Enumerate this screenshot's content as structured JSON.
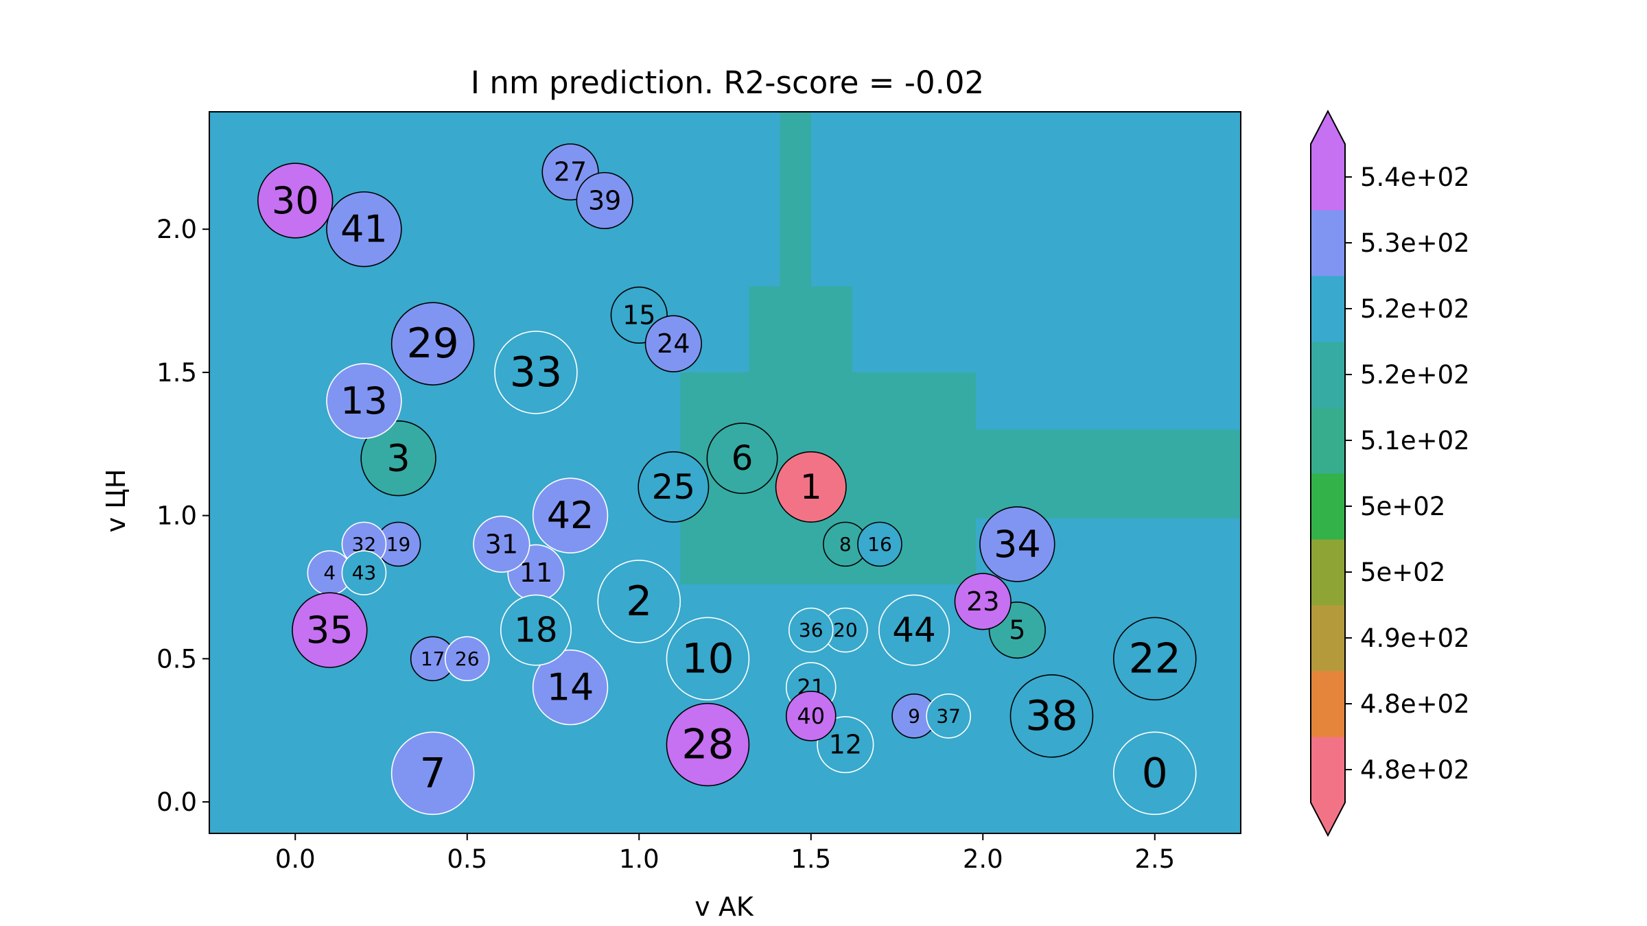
{
  "chart_data": {
    "type": "scatter",
    "title": "I nm prediction. R2-score = -0.02",
    "xlabel": "v AK",
    "ylabel": "v ЦН",
    "xlim": [
      -0.25,
      2.75
    ],
    "ylim": [
      -0.11,
      2.41
    ],
    "xticks": [
      "0.0",
      "0.5",
      "1.0",
      "1.5",
      "2.0",
      "2.5"
    ],
    "yticks": [
      "0.0",
      "0.5",
      "1.0",
      "1.5",
      "2.0"
    ],
    "grid": false,
    "background_prediction": 530,
    "prediction_regions": [
      {
        "description": "vertical band",
        "x": [
          1.41,
          1.5
        ],
        "y": [
          1.8,
          2.41
        ],
        "value": 520
      },
      {
        "description": "upper stem",
        "x": [
          1.32,
          1.62
        ],
        "y": [
          1.5,
          1.8
        ],
        "value": 520
      },
      {
        "description": "central blob",
        "x": [
          1.12,
          1.98
        ],
        "y": [
          0.76,
          1.5
        ],
        "value": 520
      },
      {
        "description": "right band",
        "x": [
          1.98,
          2.75
        ],
        "y": [
          0.99,
          1.3
        ],
        "value": 520
      }
    ],
    "colorbar": {
      "labels": [
        "4.8e+02",
        "4.8e+02",
        "4.9e+02",
        "5e+02",
        "5e+02",
        "5.1e+02",
        "5.2e+02",
        "5.2e+02",
        "5.3e+02",
        "5.4e+02"
      ],
      "colors": [
        "#f37386",
        "#e5853b",
        "#b59a3b",
        "#8ea435",
        "#33b24a",
        "#37ad8e",
        "#36aba3",
        "#39a9cd",
        "#8095f2",
        "#c670f2"
      ],
      "extend": "both"
    },
    "points": [
      {
        "id": "0",
        "x": 2.5,
        "y": 0.1,
        "size": 1.0,
        "value": 530,
        "edge": "white"
      },
      {
        "id": "1",
        "x": 1.5,
        "y": 1.1,
        "size": 0.78,
        "value": 477,
        "edge": "black"
      },
      {
        "id": "2",
        "x": 1.0,
        "y": 0.7,
        "size": 1.0,
        "value": 530,
        "edge": "white"
      },
      {
        "id": "3",
        "x": 0.3,
        "y": 1.2,
        "size": 0.86,
        "value": 522,
        "edge": "black"
      },
      {
        "id": "4",
        "x": 0.1,
        "y": 0.8,
        "size": 0.3,
        "value": 532,
        "edge": "white"
      },
      {
        "id": "5",
        "x": 2.1,
        "y": 0.6,
        "size": 0.52,
        "value": 522,
        "edge": "black"
      },
      {
        "id": "6",
        "x": 1.3,
        "y": 1.2,
        "size": 0.78,
        "value": 522,
        "edge": "black"
      },
      {
        "id": "7",
        "x": 0.4,
        "y": 0.1,
        "size": 1.0,
        "value": 535,
        "edge": "white"
      },
      {
        "id": "8",
        "x": 1.6,
        "y": 0.9,
        "size": 0.3,
        "value": 523,
        "edge": "black"
      },
      {
        "id": "9",
        "x": 1.8,
        "y": 0.3,
        "size": 0.3,
        "value": 537,
        "edge": "black"
      },
      {
        "id": "10",
        "x": 1.2,
        "y": 0.5,
        "size": 1.0,
        "value": 527,
        "edge": "white"
      },
      {
        "id": "11",
        "x": 0.7,
        "y": 0.8,
        "size": 0.52,
        "value": 534,
        "edge": "white"
      },
      {
        "id": "12",
        "x": 1.6,
        "y": 0.2,
        "size": 0.52,
        "value": 528,
        "edge": "white"
      },
      {
        "id": "13",
        "x": 0.2,
        "y": 1.4,
        "size": 0.86,
        "value": 536,
        "edge": "white"
      },
      {
        "id": "14",
        "x": 0.8,
        "y": 0.4,
        "size": 0.86,
        "value": 536,
        "edge": "white"
      },
      {
        "id": "15",
        "x": 1.0,
        "y": 1.7,
        "size": 0.52,
        "value": 527,
        "edge": "black"
      },
      {
        "id": "16",
        "x": 1.7,
        "y": 0.9,
        "size": 0.3,
        "value": 526,
        "edge": "black"
      },
      {
        "id": "17",
        "x": 0.4,
        "y": 0.5,
        "size": 0.3,
        "value": 534,
        "edge": "black"
      },
      {
        "id": "18",
        "x": 0.7,
        "y": 0.6,
        "size": 0.78,
        "value": 526,
        "edge": "white"
      },
      {
        "id": "19",
        "x": 0.3,
        "y": 0.9,
        "size": 0.3,
        "value": 537,
        "edge": "black"
      },
      {
        "id": "20",
        "x": 1.6,
        "y": 0.6,
        "size": 0.3,
        "value": 530,
        "edge": "white"
      },
      {
        "id": "21",
        "x": 1.5,
        "y": 0.4,
        "size": 0.4,
        "value": 528,
        "edge": "white"
      },
      {
        "id": "22",
        "x": 2.5,
        "y": 0.5,
        "size": 1.0,
        "value": 530,
        "edge": "black"
      },
      {
        "id": "23",
        "x": 2.0,
        "y": 0.7,
        "size": 0.52,
        "value": 540,
        "edge": "black"
      },
      {
        "id": "24",
        "x": 1.1,
        "y": 1.6,
        "size": 0.52,
        "value": 537,
        "edge": "black"
      },
      {
        "id": "25",
        "x": 1.1,
        "y": 1.1,
        "size": 0.78,
        "value": 524,
        "edge": "black"
      },
      {
        "id": "26",
        "x": 0.5,
        "y": 0.5,
        "size": 0.3,
        "value": 531,
        "edge": "white"
      },
      {
        "id": "27",
        "x": 0.8,
        "y": 2.2,
        "size": 0.52,
        "value": 536,
        "edge": "black"
      },
      {
        "id": "28",
        "x": 1.2,
        "y": 0.2,
        "size": 1.0,
        "value": 540,
        "edge": "black"
      },
      {
        "id": "29",
        "x": 0.4,
        "y": 1.6,
        "size": 1.0,
        "value": 536,
        "edge": "black"
      },
      {
        "id": "30",
        "x": 0.0,
        "y": 2.1,
        "size": 0.86,
        "value": 539,
        "edge": "black"
      },
      {
        "id": "31",
        "x": 0.6,
        "y": 0.9,
        "size": 0.52,
        "value": 536,
        "edge": "white"
      },
      {
        "id": "32",
        "x": 0.2,
        "y": 0.9,
        "size": 0.3,
        "value": 531,
        "edge": "white"
      },
      {
        "id": "33",
        "x": 0.7,
        "y": 1.5,
        "size": 1.0,
        "value": 530,
        "edge": "white"
      },
      {
        "id": "34",
        "x": 2.1,
        "y": 0.9,
        "size": 0.86,
        "value": 537,
        "edge": "black"
      },
      {
        "id": "35",
        "x": 0.1,
        "y": 0.6,
        "size": 0.86,
        "value": 541,
        "edge": "black"
      },
      {
        "id": "36",
        "x": 1.5,
        "y": 0.6,
        "size": 0.3,
        "value": 528,
        "edge": "white"
      },
      {
        "id": "37",
        "x": 1.9,
        "y": 0.3,
        "size": 0.3,
        "value": 526,
        "edge": "white"
      },
      {
        "id": "38",
        "x": 2.2,
        "y": 0.3,
        "size": 1.0,
        "value": 527,
        "edge": "black"
      },
      {
        "id": "39",
        "x": 0.9,
        "y": 2.1,
        "size": 0.52,
        "value": 536,
        "edge": "black"
      },
      {
        "id": "40",
        "x": 1.5,
        "y": 0.3,
        "size": 0.4,
        "value": 538,
        "edge": "black"
      },
      {
        "id": "41",
        "x": 0.2,
        "y": 2.0,
        "size": 0.86,
        "value": 534,
        "edge": "black"
      },
      {
        "id": "42",
        "x": 0.8,
        "y": 1.0,
        "size": 0.86,
        "value": 532,
        "edge": "white"
      },
      {
        "id": "43",
        "x": 0.2,
        "y": 0.8,
        "size": 0.3,
        "value": 530,
        "edge": "white"
      },
      {
        "id": "44",
        "x": 1.8,
        "y": 0.6,
        "size": 0.78,
        "value": 530,
        "edge": "white"
      }
    ]
  }
}
